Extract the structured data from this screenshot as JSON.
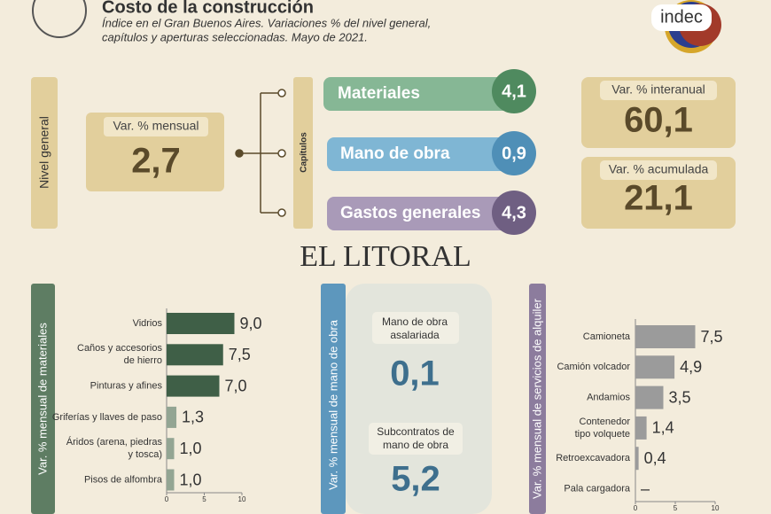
{
  "header": {
    "title": "Costo de la construcción",
    "subtitle": [
      "Índice en el Gran Buenos Aires. Variaciones % del nivel general,",
      "capítulos y aperturas seleccionadas. Mayo de 2021."
    ],
    "logo": "indec"
  },
  "nivel_general": {
    "label": "Nivel general",
    "box_label": "Var. % mensual",
    "value": "2,7"
  },
  "capitulos": {
    "label": "Capítulos",
    "items": [
      {
        "name": "Materiales",
        "value": "4,1"
      },
      {
        "name": "Mano de obra",
        "value": "0,9"
      },
      {
        "name": "Gastos generales",
        "value": "4,3"
      }
    ]
  },
  "resumen": [
    {
      "label": "Var. % interanual",
      "value": "60,1"
    },
    {
      "label": "Var. % acumulada",
      "value": "21,1"
    }
  ],
  "watermark": "EL LITORAL",
  "mano_de_obra": {
    "label": "Var. % mensual de mano de obra",
    "items": [
      {
        "name": [
          "Mano de obra",
          "asalariada"
        ],
        "value": "0,1"
      },
      {
        "name": [
          "Subcontratos de",
          "mano de obra"
        ],
        "value": "5,2"
      }
    ]
  },
  "chart_data": [
    {
      "type": "bar",
      "orientation": "horizontal",
      "axis_label": "Var. % mensual de materiales",
      "categories": [
        [
          "Vidrios"
        ],
        [
          "Caños y accesorios",
          "de hierro"
        ],
        [
          "Pinturas y afines"
        ],
        [
          "Griferías y llaves de paso"
        ],
        [
          "Áridos (arena, piedras",
          "y tosca)"
        ],
        [
          "Pisos de alfombra"
        ]
      ],
      "values": [
        9.0,
        7.5,
        7.0,
        1.3,
        1.0,
        1.0
      ],
      "value_labels": [
        "9,0",
        "7,5",
        "7,0",
        "1,3",
        "1,0",
        "1,0"
      ],
      "colors": [
        "#3f5f47",
        "#3f5f47",
        "#3f5f47",
        "#93a593",
        "#93a593",
        "#93a593"
      ],
      "xlim": [
        0,
        10
      ],
      "xticks": [
        0,
        5,
        10
      ]
    },
    {
      "type": "bar",
      "orientation": "horizontal",
      "axis_label": "Var. % mensual de servicios de alquiler",
      "categories": [
        [
          "Camioneta"
        ],
        [
          "Camión volcador"
        ],
        [
          "Andamios"
        ],
        [
          "Contenedor",
          "tipo volquete"
        ],
        [
          "Retroexcavadora"
        ],
        [
          "Pala cargadora"
        ]
      ],
      "values": [
        7.5,
        4.9,
        3.5,
        1.4,
        0.4,
        null
      ],
      "value_labels": [
        "7,5",
        "4,9",
        "3,5",
        "1,4",
        "0,4",
        "–"
      ],
      "colors": [
        "#9b9b9b",
        "#9b9b9b",
        "#9b9b9b",
        "#9b9b9b",
        "#9b9b9b",
        "#9b9b9b"
      ],
      "xlim": [
        0,
        10
      ],
      "xticks": [
        0,
        5,
        10
      ]
    }
  ]
}
